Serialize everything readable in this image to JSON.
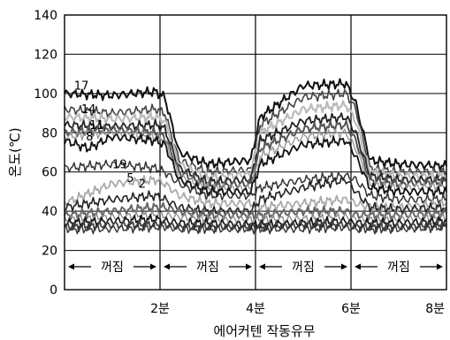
{
  "chart_data": {
    "type": "line",
    "xlabel": "에어커텐 작동유무",
    "ylabel": "온도(℃)",
    "x_unit": "분",
    "xlim": [
      0,
      8
    ],
    "ylim": [
      0,
      140
    ],
    "yticks": [
      0,
      20,
      40,
      60,
      80,
      100,
      120,
      140
    ],
    "xticks": [
      {
        "value": 2,
        "label": "2분"
      },
      {
        "value": 4,
        "label": "4분"
      },
      {
        "value": 6,
        "label": "6분"
      },
      {
        "value": 8,
        "label": "8분"
      }
    ],
    "grid": true,
    "state_bands": [
      {
        "start": 0,
        "end": 2,
        "label": "꺼짐"
      },
      {
        "start": 2,
        "end": 4,
        "label": "꺼짐"
      },
      {
        "start": 4,
        "end": 6,
        "label": "꺼짐"
      },
      {
        "start": 6,
        "end": 8,
        "label": "꺼짐"
      }
    ],
    "annotations": [
      {
        "text": "17",
        "x": 0.2,
        "y": 102
      },
      {
        "text": "14",
        "x": 0.35,
        "y": 90
      },
      {
        "text": "11",
        "x": 0.52,
        "y": 82
      },
      {
        "text": "8",
        "x": 0.45,
        "y": 76
      },
      {
        "text": "19",
        "x": 1.0,
        "y": 62
      },
      {
        "text": "5",
        "x": 1.3,
        "y": 55
      },
      {
        "text": "2",
        "x": 1.55,
        "y": 52
      }
    ],
    "series": [
      {
        "values": [
          [
            0,
            100
          ],
          [
            1,
            99
          ],
          [
            1.9,
            101
          ],
          [
            2.1,
            98
          ],
          [
            2.4,
            70
          ],
          [
            3,
            64
          ],
          [
            3.9,
            66
          ],
          [
            4.1,
            88
          ],
          [
            5,
            104
          ],
          [
            5.9,
            105
          ],
          [
            6.1,
            95
          ],
          [
            6.4,
            66
          ],
          [
            7,
            64
          ],
          [
            8,
            63
          ]
        ]
      },
      {
        "values": [
          [
            0,
            92
          ],
          [
            1,
            90
          ],
          [
            1.9,
            92
          ],
          [
            2.1,
            90
          ],
          [
            2.4,
            66
          ],
          [
            3,
            60
          ],
          [
            3.9,
            61
          ],
          [
            4.1,
            84
          ],
          [
            5,
            98
          ],
          [
            5.9,
            100
          ],
          [
            6.1,
            92
          ],
          [
            6.4,
            62
          ],
          [
            7,
            60
          ],
          [
            8,
            60
          ]
        ]
      },
      {
        "values": [
          [
            0,
            88
          ],
          [
            1,
            87
          ],
          [
            1.9,
            88
          ],
          [
            2.1,
            86
          ],
          [
            2.4,
            64
          ],
          [
            3,
            57
          ],
          [
            3.9,
            59
          ],
          [
            4.1,
            80
          ],
          [
            5,
            92
          ],
          [
            5.9,
            94
          ],
          [
            6.1,
            86
          ],
          [
            6.4,
            60
          ],
          [
            7,
            58
          ],
          [
            8,
            58
          ]
        ]
      },
      {
        "values": [
          [
            0,
            84
          ],
          [
            1,
            83
          ],
          [
            1.9,
            84
          ],
          [
            2.1,
            82
          ],
          [
            2.4,
            62
          ],
          [
            3,
            55
          ],
          [
            3.9,
            56
          ],
          [
            4.1,
            76
          ],
          [
            5,
            86
          ],
          [
            5.9,
            88
          ],
          [
            6.1,
            80
          ],
          [
            6.4,
            58
          ],
          [
            7,
            56
          ],
          [
            8,
            56
          ]
        ]
      },
      {
        "values": [
          [
            0,
            80
          ],
          [
            1,
            82
          ],
          [
            1.9,
            80
          ],
          [
            2.1,
            78
          ],
          [
            2.4,
            60
          ],
          [
            3,
            53
          ],
          [
            3.9,
            54
          ],
          [
            4.1,
            72
          ],
          [
            5,
            82
          ],
          [
            5.9,
            84
          ],
          [
            6.1,
            76
          ],
          [
            6.4,
            56
          ],
          [
            7,
            54
          ],
          [
            8,
            55
          ]
        ]
      },
      {
        "values": [
          [
            0,
            78
          ],
          [
            1,
            80
          ],
          [
            1.9,
            78
          ],
          [
            2.1,
            76
          ],
          [
            2.4,
            58
          ],
          [
            3,
            52
          ],
          [
            3.9,
            52
          ],
          [
            4.1,
            68
          ],
          [
            5,
            78
          ],
          [
            5.9,
            80
          ],
          [
            6.1,
            72
          ],
          [
            6.4,
            54
          ],
          [
            7,
            52
          ],
          [
            8,
            53
          ]
        ]
      },
      {
        "values": [
          [
            0,
            76
          ],
          [
            0.5,
            72
          ],
          [
            1,
            78
          ],
          [
            1.9,
            76
          ],
          [
            2.1,
            74
          ],
          [
            2.4,
            56
          ],
          [
            3,
            50
          ],
          [
            3.9,
            50
          ],
          [
            4.1,
            64
          ],
          [
            5,
            74
          ],
          [
            5.9,
            76
          ],
          [
            6.1,
            68
          ],
          [
            6.4,
            52
          ],
          [
            7,
            50
          ],
          [
            8,
            50
          ]
        ]
      },
      {
        "values": [
          [
            0,
            62
          ],
          [
            1,
            64
          ],
          [
            1.9,
            62
          ],
          [
            2.1,
            60
          ],
          [
            2.4,
            54
          ],
          [
            3,
            48
          ],
          [
            3.9,
            48
          ],
          [
            4.1,
            52
          ],
          [
            5,
            56
          ],
          [
            5.9,
            58
          ],
          [
            6.1,
            56
          ],
          [
            6.4,
            48
          ],
          [
            7,
            46
          ],
          [
            8,
            46
          ]
        ]
      },
      {
        "values": [
          [
            0,
            44
          ],
          [
            1,
            54
          ],
          [
            1.9,
            56
          ],
          [
            2.1,
            54
          ],
          [
            2.4,
            48
          ],
          [
            3,
            44
          ],
          [
            3.9,
            44
          ],
          [
            4.1,
            42
          ],
          [
            5,
            44
          ],
          [
            5.9,
            46
          ],
          [
            6.1,
            44
          ],
          [
            6.4,
            42
          ],
          [
            7,
            42
          ],
          [
            8,
            44
          ]
        ]
      },
      {
        "values": [
          [
            0,
            42
          ],
          [
            1,
            46
          ],
          [
            1.9,
            48
          ],
          [
            2.1,
            46
          ],
          [
            2.4,
            42
          ],
          [
            3,
            40
          ],
          [
            3.9,
            40
          ],
          [
            4.1,
            46
          ],
          [
            5,
            52
          ],
          [
            5.9,
            56
          ],
          [
            6.1,
            50
          ],
          [
            6.4,
            42
          ],
          [
            7,
            41
          ],
          [
            8,
            42
          ]
        ]
      },
      {
        "values": [
          [
            0,
            38
          ],
          [
            1,
            40
          ],
          [
            1.9,
            42
          ],
          [
            2.1,
            42
          ],
          [
            2.4,
            40
          ],
          [
            3,
            38
          ],
          [
            3.9,
            38
          ],
          [
            4.1,
            38
          ],
          [
            5,
            40
          ],
          [
            5.9,
            40
          ],
          [
            6.1,
            38
          ],
          [
            6.4,
            38
          ],
          [
            7,
            38
          ],
          [
            8,
            39
          ]
        ]
      },
      {
        "values": [
          [
            0,
            36
          ],
          [
            1,
            37
          ],
          [
            1.9,
            38
          ],
          [
            2.1,
            38
          ],
          [
            2.4,
            37
          ],
          [
            3,
            36
          ],
          [
            3.9,
            36
          ],
          [
            4.1,
            36
          ],
          [
            5,
            36
          ],
          [
            5.9,
            37
          ],
          [
            6.1,
            36
          ],
          [
            6.4,
            36
          ],
          [
            7,
            36
          ],
          [
            8,
            37
          ]
        ]
      },
      {
        "values": [
          [
            0,
            34
          ],
          [
            1,
            35
          ],
          [
            1.9,
            36
          ],
          [
            2.1,
            35
          ],
          [
            2.4,
            34
          ],
          [
            3,
            34
          ],
          [
            3.9,
            33
          ],
          [
            4.1,
            33
          ],
          [
            5,
            34
          ],
          [
            5.9,
            35
          ],
          [
            6.1,
            34
          ],
          [
            6.4,
            34
          ],
          [
            7,
            34
          ],
          [
            8,
            35
          ]
        ]
      },
      {
        "values": [
          [
            0,
            32
          ],
          [
            1,
            33
          ],
          [
            1.9,
            33
          ],
          [
            2.1,
            33
          ],
          [
            2.4,
            32
          ],
          [
            3,
            32
          ],
          [
            3.9,
            32
          ],
          [
            4.1,
            32
          ],
          [
            5,
            33
          ],
          [
            5.9,
            33
          ],
          [
            6.1,
            32
          ],
          [
            6.4,
            32
          ],
          [
            7,
            32
          ],
          [
            8,
            33
          ]
        ]
      },
      {
        "values": [
          [
            0,
            31
          ],
          [
            1,
            31
          ],
          [
            1.9,
            32
          ],
          [
            2.1,
            32
          ],
          [
            2.4,
            31
          ],
          [
            3,
            31
          ],
          [
            3.9,
            31
          ],
          [
            4.1,
            31
          ],
          [
            5,
            31
          ],
          [
            5.9,
            32
          ],
          [
            6.1,
            31
          ],
          [
            6.4,
            31
          ],
          [
            7,
            31
          ],
          [
            8,
            32
          ]
        ]
      }
    ]
  }
}
